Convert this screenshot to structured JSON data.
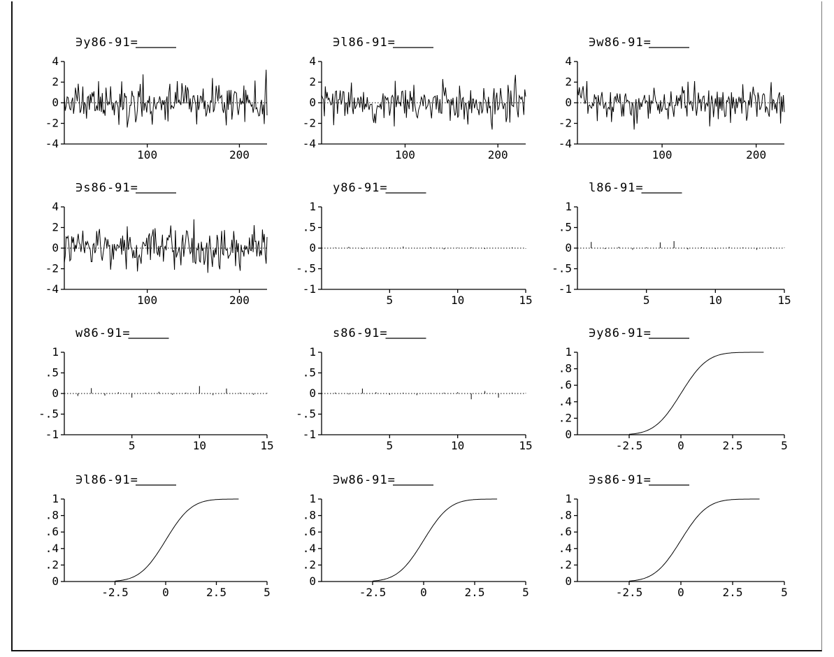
{
  "chart_data": [
    {
      "id": "p1",
      "type": "line",
      "title": "∋y86-91=",
      "x_ticks": [
        "100",
        "200"
      ],
      "y_ticks": [
        "4",
        "2",
        "0",
        "-2",
        "-4"
      ],
      "xlim": [
        10,
        230
      ],
      "ylim": [
        -4,
        4
      ],
      "x_tick_values": [
        100,
        200
      ],
      "y_tick_values": [
        4,
        2,
        0,
        -2,
        -4
      ],
      "ref_y": 0,
      "series": [
        {
          "kind": "noise",
          "n": 220,
          "seed": 11,
          "amp": 0.95,
          "spikes": [
            [
              218,
              3.2
            ],
            [
              160,
              2.4
            ],
            [
              68,
              -2.4
            ],
            [
              122,
              2.1
            ],
            [
              175,
              -2.2
            ]
          ]
        }
      ]
    },
    {
      "id": "p2",
      "type": "line",
      "title": "∋l86-91=",
      "x_ticks": [
        "100",
        "200"
      ],
      "y_ticks": [
        "4",
        "2",
        "0",
        "-2",
        "-4"
      ],
      "xlim": [
        10,
        230
      ],
      "ylim": [
        -4,
        4
      ],
      "x_tick_values": [
        100,
        200
      ],
      "y_tick_values": [
        4,
        2,
        0,
        -2,
        -4
      ],
      "ref_y": 0,
      "series": [
        {
          "kind": "noise",
          "n": 220,
          "seed": 23,
          "amp": 0.9,
          "spikes": [
            [
              208,
              2.7
            ],
            [
              130,
              2.3
            ],
            [
              183,
              -2.6
            ],
            [
              78,
              -2.3
            ]
          ]
        }
      ]
    },
    {
      "id": "p3",
      "type": "line",
      "title": "∋w86-91=",
      "x_ticks": [
        "100",
        "200"
      ],
      "y_ticks": [
        "4",
        "2",
        "0",
        "-2",
        "-4"
      ],
      "xlim": [
        10,
        230
      ],
      "ylim": [
        -4,
        4
      ],
      "x_tick_values": [
        100,
        200
      ],
      "y_tick_values": [
        4,
        2,
        0,
        -2,
        -4
      ],
      "ref_y": 0,
      "series": [
        {
          "kind": "noise",
          "n": 220,
          "seed": 37,
          "amp": 0.85,
          "spikes": [
            [
              205,
              2.0
            ],
            [
              60,
              -2.6
            ],
            [
              140,
              -2.3
            ],
            [
              175,
              1.8
            ]
          ]
        }
      ]
    },
    {
      "id": "p4",
      "type": "line",
      "title": "∋s86-91=",
      "x_ticks": [
        "100",
        "200"
      ],
      "y_ticks": [
        "4",
        "2",
        "0",
        "-2",
        "-4"
      ],
      "xlim": [
        10,
        230
      ],
      "ylim": [
        -4,
        4
      ],
      "x_tick_values": [
        100,
        200
      ],
      "y_tick_values": [
        4,
        2,
        0,
        -2,
        -4
      ],
      "ref_y": 0,
      "series": [
        {
          "kind": "noise",
          "n": 220,
          "seed": 51,
          "amp": 0.9,
          "spikes": [
            [
              140,
              2.8
            ],
            [
              190,
              -2.2
            ],
            [
              155,
              -2.4
            ],
            [
              115,
              2.2
            ]
          ]
        }
      ]
    },
    {
      "id": "p5",
      "type": "bar",
      "title": "y86-91=",
      "x_ticks": [
        "5",
        "10",
        "15"
      ],
      "y_ticks": [
        "1",
        ".5",
        "0",
        "-.5",
        "-1"
      ],
      "xlim": [
        0,
        15
      ],
      "ylim": [
        -1,
        1
      ],
      "x_tick_values": [
        5,
        10,
        15
      ],
      "y_tick_values": [
        1,
        0.5,
        0,
        -0.5,
        -1
      ],
      "ref_y": 0,
      "x": [
        1,
        2,
        3,
        4,
        5,
        6,
        7,
        8,
        9,
        10,
        11,
        12,
        13,
        14,
        15
      ],
      "values": [
        0.01,
        0.03,
        -0.02,
        0.01,
        0.02,
        0.04,
        -0.01,
        0.02,
        -0.03,
        0.01,
        0.02,
        -0.02,
        0.01,
        0.02,
        -0.01
      ]
    },
    {
      "id": "p6",
      "type": "bar",
      "title": "l86-91=",
      "x_ticks": [
        "5",
        "10",
        "15"
      ],
      "y_ticks": [
        "1",
        ".5",
        "0",
        "-.5",
        "-1"
      ],
      "xlim": [
        0,
        15
      ],
      "ylim": [
        -1,
        1
      ],
      "x_tick_values": [
        5,
        10,
        15
      ],
      "y_tick_values": [
        1,
        0.5,
        0,
        -0.5,
        -1
      ],
      "ref_y": 0,
      "x": [
        1,
        2,
        3,
        4,
        5,
        6,
        7,
        8,
        9,
        10,
        11,
        12,
        13,
        14,
        15
      ],
      "values": [
        0.15,
        -0.02,
        0.03,
        -0.04,
        0.02,
        0.14,
        0.17,
        -0.03,
        0.02,
        -0.02,
        0.03,
        0.02,
        -0.04,
        0.02,
        0.01
      ]
    },
    {
      "id": "p7",
      "type": "bar",
      "title": "w86-91=",
      "x_ticks": [
        "5",
        "10",
        "15"
      ],
      "y_ticks": [
        "1",
        ".5",
        "0",
        "-.5",
        "-1"
      ],
      "xlim": [
        0,
        15
      ],
      "ylim": [
        -1,
        1
      ],
      "x_tick_values": [
        5,
        10,
        15
      ],
      "y_tick_values": [
        1,
        0.5,
        0,
        -0.5,
        -1
      ],
      "ref_y": 0,
      "x": [
        1,
        2,
        3,
        4,
        5,
        6,
        7,
        8,
        9,
        10,
        11,
        12,
        13,
        14,
        15
      ],
      "values": [
        -0.06,
        0.13,
        -0.05,
        0.03,
        -0.1,
        0.02,
        0.04,
        -0.03,
        0.02,
        0.18,
        -0.04,
        0.12,
        0.02,
        -0.03,
        0.01
      ]
    },
    {
      "id": "p8",
      "type": "bar",
      "title": "s86-91=",
      "x_ticks": [
        "5",
        "10",
        "15"
      ],
      "y_ticks": [
        "1",
        ".5",
        "0",
        "-.5",
        "-1"
      ],
      "xlim": [
        0,
        15
      ],
      "ylim": [
        -1,
        1
      ],
      "x_tick_values": [
        5,
        10,
        15
      ],
      "y_tick_values": [
        1,
        0.5,
        0,
        -0.5,
        -1
      ],
      "ref_y": 0,
      "x": [
        1,
        2,
        3,
        4,
        5,
        6,
        7,
        8,
        9,
        10,
        11,
        12,
        13,
        14,
        15
      ],
      "values": [
        0.02,
        -0.02,
        0.12,
        0.03,
        -0.03,
        0.02,
        -0.04,
        0.01,
        0.02,
        0.03,
        -0.14,
        0.06,
        -0.1,
        0.02,
        0.01
      ]
    },
    {
      "id": "p9",
      "type": "line",
      "title": "∋y86-91=",
      "x_ticks": [
        "-2.5",
        "0",
        "2.5",
        "5"
      ],
      "y_ticks": [
        "1",
        ".8",
        ".6",
        ".4",
        ".2",
        "0"
      ],
      "xlim": [
        -5,
        5
      ],
      "ylim": [
        0,
        1
      ],
      "x_tick_values": [
        -2.5,
        0,
        2.5,
        5
      ],
      "y_tick_values": [
        1,
        0.8,
        0.6,
        0.4,
        0.2,
        0
      ],
      "series": [
        {
          "kind": "cdf",
          "from": -2.5,
          "to": 4,
          "mu": 0,
          "sigma": 1
        }
      ]
    },
    {
      "id": "p10",
      "type": "line",
      "title": "∋l86-91=",
      "x_ticks": [
        "-2.5",
        "0",
        "2.5",
        "5"
      ],
      "y_ticks": [
        "1",
        ".8",
        ".6",
        ".4",
        ".2",
        "0"
      ],
      "xlim": [
        -5,
        5
      ],
      "ylim": [
        0,
        1
      ],
      "x_tick_values": [
        -2.5,
        0,
        2.5,
        5
      ],
      "y_tick_values": [
        1,
        0.8,
        0.6,
        0.4,
        0.2,
        0
      ],
      "series": [
        {
          "kind": "cdf",
          "from": -2.5,
          "to": 3.6,
          "mu": 0,
          "sigma": 1
        }
      ]
    },
    {
      "id": "p11",
      "type": "line",
      "title": "∋w86-91=",
      "x_ticks": [
        "-2.5",
        "0",
        "2.5",
        "5"
      ],
      "y_ticks": [
        "1",
        ".8",
        ".6",
        ".4",
        ".2",
        "0"
      ],
      "xlim": [
        -5,
        5
      ],
      "ylim": [
        0,
        1
      ],
      "x_tick_values": [
        -2.5,
        0,
        2.5,
        5
      ],
      "y_tick_values": [
        1,
        0.8,
        0.6,
        0.4,
        0.2,
        0
      ],
      "series": [
        {
          "kind": "cdf",
          "from": -2.5,
          "to": 3.6,
          "mu": 0,
          "sigma": 1
        }
      ]
    },
    {
      "id": "p12",
      "type": "line",
      "title": "∋s86-91=",
      "x_ticks": [
        "-2.5",
        "0",
        "2.5",
        "5"
      ],
      "y_ticks": [
        "1",
        ".8",
        ".6",
        ".4",
        ".2",
        "0"
      ],
      "xlim": [
        -5,
        5
      ],
      "ylim": [
        0,
        1
      ],
      "x_tick_values": [
        -2.5,
        0,
        2.5,
        5
      ],
      "y_tick_values": [
        1,
        0.8,
        0.6,
        0.4,
        0.2,
        0
      ],
      "series": [
        {
          "kind": "cdf",
          "from": -2.5,
          "to": 3.8,
          "mu": 0,
          "sigma": 1
        }
      ]
    }
  ]
}
